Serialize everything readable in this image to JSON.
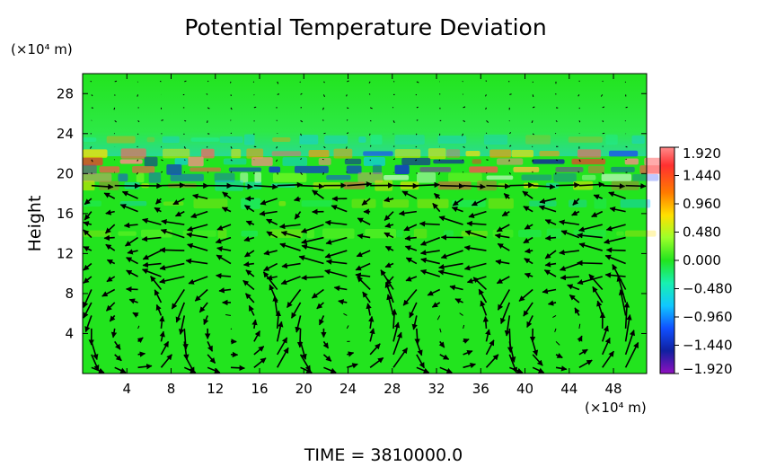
{
  "chart_data": {
    "type": "heatmap",
    "title": "Potential Temperature Deviation",
    "ylabel": "Height",
    "x_unit": "(×10⁴ m)",
    "y_unit": "(×10⁴ m)",
    "x_ticks": [
      4,
      8,
      12,
      16,
      20,
      24,
      28,
      32,
      36,
      40,
      44,
      48
    ],
    "y_ticks": [
      4,
      8,
      12,
      16,
      20,
      24,
      28
    ],
    "xlim": [
      0,
      51
    ],
    "ylim": [
      0,
      30
    ],
    "colorbar": {
      "ticks": [
        1.92,
        1.44,
        0.96,
        0.48,
        0.0,
        -0.48,
        -0.96,
        -1.44,
        -1.92
      ],
      "tick_labels": [
        "1.920",
        "1.440",
        "0.960",
        "0.480",
        "0.000",
        "−0.480",
        "−0.960",
        "−1.440",
        "−1.920"
      ],
      "range": [
        -1.92,
        1.92
      ]
    },
    "overlay": "wind vector arrows",
    "footer": "TIME = 3810000.0",
    "colors": {
      "background_field": "#22e41e",
      "positive_max": "#ff8080",
      "negative_min": "#8800aa"
    }
  }
}
